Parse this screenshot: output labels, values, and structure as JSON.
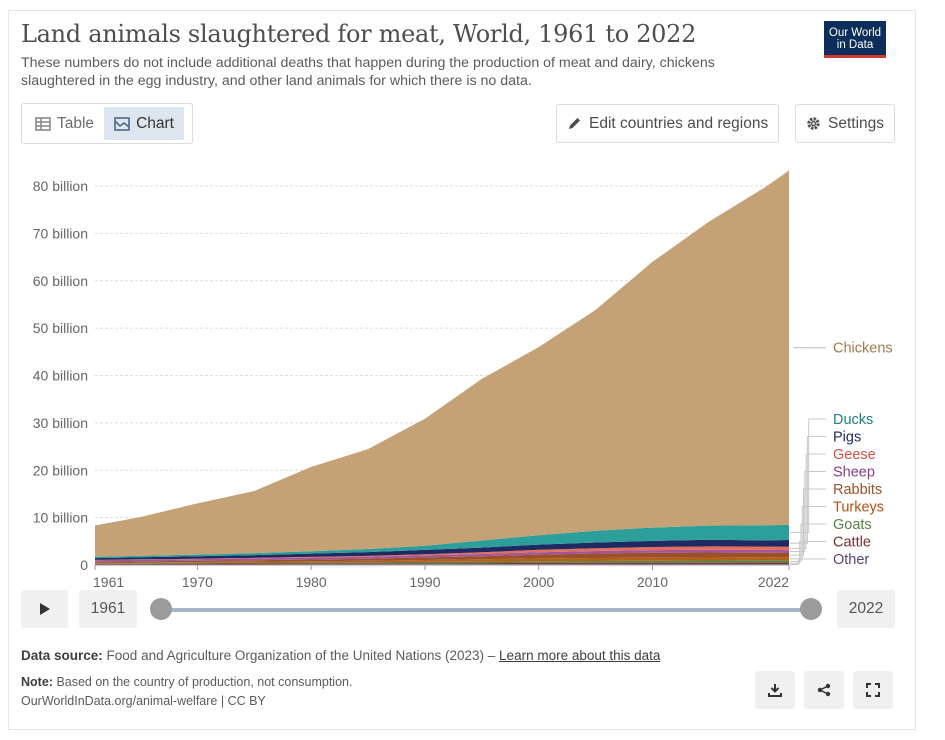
{
  "header": {
    "title": "Land animals slaughtered for meat, World, 1961 to 2022",
    "subtitle": "These numbers do not include additional deaths that happen during the production of meat and dairy, chickens slaughtered in the egg industry, and other land animals for which there is no data.",
    "logo_line1": "Our World",
    "logo_line2": "in Data"
  },
  "toolbar": {
    "table_label": "Table",
    "chart_label": "Chart",
    "edit_label": "Edit countries and regions",
    "settings_label": "Settings"
  },
  "timeline": {
    "start_label": "1961",
    "end_label": "2022",
    "start_year": 1961,
    "end_year": 2022
  },
  "footer": {
    "source_prefix": "Data source:",
    "source_text": "Food and Agriculture Organization of the United Nations (2023) –",
    "source_link": "Learn more about this data",
    "note_prefix": "Note:",
    "note_text": "Based on the country of production, not consumption.",
    "url": "OurWorldInData.org/animal-welfare | CC BY"
  },
  "icons": [
    "table-icon",
    "chart-icon",
    "pencil-icon",
    "gear-icon",
    "play-icon",
    "download-icon",
    "share-icon",
    "fullscreen-icon"
  ],
  "chart_data": {
    "type": "area",
    "stacked": true,
    "x": [
      1961,
      1965,
      1970,
      1975,
      1980,
      1985,
      1990,
      1995,
      2000,
      2005,
      2010,
      2015,
      2020,
      2022
    ],
    "ylim": [
      0,
      80000000000
    ],
    "yticks": [
      0,
      10000000000,
      20000000000,
      30000000000,
      40000000000,
      50000000000,
      60000000000,
      70000000000,
      80000000000
    ],
    "ytick_labels": [
      "0",
      "10 billion",
      "20 billion",
      "30 billion",
      "40 billion",
      "50 billion",
      "60 billion",
      "70 billion",
      "80 billion"
    ],
    "xticks": [
      1961,
      1970,
      1980,
      1990,
      2000,
      2010,
      2022
    ],
    "xtick_labels": [
      "1961",
      "1970",
      "1980",
      "1990",
      "2000",
      "2010",
      "2022"
    ],
    "grid": true,
    "legend": "right",
    "series": [
      {
        "name": "Other",
        "color": "#6d3e91",
        "values": [
          80000000.0,
          90000000.0,
          100000000.0,
          110000000.0,
          120000000.0,
          130000000.0,
          140000000.0,
          150000000.0,
          160000000.0,
          170000000.0,
          180000000.0,
          190000000.0,
          200000000.0,
          200000000.0
        ]
      },
      {
        "name": "Cattle",
        "color": "#883039",
        "values": [
          170000000.0,
          180000000.0,
          200000000.0,
          220000000.0,
          230000000.0,
          240000000.0,
          250000000.0,
          260000000.0,
          280000000.0,
          290000000.0,
          290000000.0,
          300000000.0,
          310000000.0,
          310000000.0
        ]
      },
      {
        "name": "Goats",
        "color": "#578145",
        "values": [
          130000000.0,
          140000000.0,
          160000000.0,
          180000000.0,
          200000000.0,
          230000000.0,
          270000000.0,
          300000000.0,
          340000000.0,
          390000000.0,
          430000000.0,
          470000000.0,
          500000000.0,
          510000000.0
        ]
      },
      {
        "name": "Turkeys",
        "color": "#b16214",
        "values": [
          120000000.0,
          140000000.0,
          170000000.0,
          200000000.0,
          250000000.0,
          290000000.0,
          400000000.0,
          500000000.0,
          620000000.0,
          620000000.0,
          640000000.0,
          630000000.0,
          620000000.0,
          620000000.0
        ]
      },
      {
        "name": "Rabbits",
        "color": "#9a5129",
        "values": [
          200000000.0,
          220000000.0,
          250000000.0,
          300000000.0,
          370000000.0,
          450000000.0,
          550000000.0,
          650000000.0,
          800000000.0,
          950000000.0,
          1050000000.0,
          1050000000.0,
          950000000.0,
          900000000.0
        ]
      },
      {
        "name": "Sheep",
        "color": "#a2559c",
        "values": [
          330000000.0,
          350000000.0,
          370000000.0,
          380000000.0,
          400000000.0,
          420000000.0,
          450000000.0,
          470000000.0,
          500000000.0,
          530000000.0,
          550000000.0,
          580000000.0,
          600000000.0,
          610000000.0
        ]
      },
      {
        "name": "Geese",
        "color": "#e56e5a",
        "values": [
          50000000.0,
          60000000.0,
          80000000.0,
          100000000.0,
          130000000.0,
          160000000.0,
          220000000.0,
          350000000.0,
          500000000.0,
          600000000.0,
          650000000.0,
          700000000.0,
          720000000.0,
          720000000.0
        ]
      },
      {
        "name": "Pigs",
        "color": "#1f2a62",
        "values": [
          380000000.0,
          440000000.0,
          500000000.0,
          600000000.0,
          700000000.0,
          800000000.0,
          900000000.0,
          1000000000.0,
          1100000000.0,
          1200000000.0,
          1300000000.0,
          1400000000.0,
          1300000000.0,
          1400000000.0
        ]
      },
      {
        "name": "Ducks",
        "color": "#2c9f9a",
        "values": [
          280000000.0,
          320000000.0,
          370000000.0,
          430000000.0,
          500000000.0,
          650000000.0,
          900000000.0,
          1500000000.0,
          2000000000.0,
          2500000000.0,
          2800000000.0,
          3000000000.0,
          3200000000.0,
          3200000000.0
        ]
      },
      {
        "name": "Chickens",
        "color": "#c4a276",
        "values": [
          6600000000.0,
          8200000000.0,
          10800000000.0,
          13100000000.0,
          17800000000.0,
          21100000000.0,
          26800000000.0,
          34100000000.0,
          39700000000.0,
          46600000000.0,
          56100000000.0,
          64200000000.0,
          71500000000.0,
          74800000000.0
        ]
      }
    ]
  }
}
